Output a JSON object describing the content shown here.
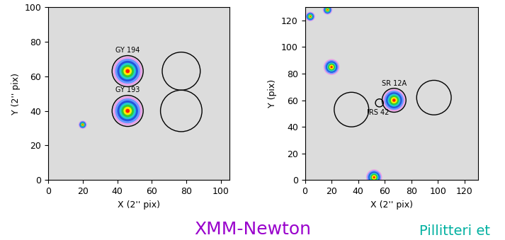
{
  "chart_data": [
    {
      "type": "image",
      "xlabel": "X (2'' pix)",
      "ylabel": "Y (2'' pix)",
      "xlim": [
        0,
        105
      ],
      "ylim": [
        0,
        100
      ],
      "xticks": [
        0,
        20,
        40,
        60,
        80,
        100
      ],
      "yticks": [
        0,
        20,
        40,
        60,
        80,
        100
      ],
      "sources": [
        {
          "x": 46,
          "y": 63,
          "size": 7
        },
        {
          "x": 46,
          "y": 40,
          "size": 7
        },
        {
          "x": 20,
          "y": 32,
          "size": 2
        }
      ],
      "regions": [
        {
          "label": "GY 194",
          "x": 46,
          "y": 63,
          "r": 9
        },
        {
          "label": "GY 193",
          "x": 46,
          "y": 40,
          "r": 9
        },
        {
          "x": 77,
          "y": 63,
          "r": 11
        },
        {
          "x": 77,
          "y": 40,
          "r": 12
        }
      ]
    },
    {
      "type": "image",
      "xlabel": "X (2'' pix)",
      "ylabel": "Y (pix)",
      "xlim": [
        0,
        130
      ],
      "ylim": [
        0,
        130
      ],
      "xticks": [
        0,
        20,
        40,
        60,
        80,
        100,
        120
      ],
      "yticks": [
        0,
        20,
        40,
        60,
        80,
        100,
        120
      ],
      "sources": [
        {
          "x": 67,
          "y": 60,
          "size": 7
        },
        {
          "x": 20,
          "y": 85,
          "size": 5
        },
        {
          "x": 17,
          "y": 128,
          "size": 3
        },
        {
          "x": 52,
          "y": 2,
          "size": 5
        },
        {
          "x": 4,
          "y": 123,
          "size": 3
        }
      ],
      "regions": [
        {
          "label": "SR 12A",
          "x": 67,
          "y": 60,
          "r": 9
        },
        {
          "label": "IRS 42",
          "x": 56,
          "y": 58,
          "r": 3
        },
        {
          "x": 35,
          "y": 53,
          "r": 13
        },
        {
          "x": 97,
          "y": 62,
          "r": 13
        }
      ]
    }
  ],
  "annotations": [
    "XMM-Newton",
    "Pillitteri et"
  ]
}
